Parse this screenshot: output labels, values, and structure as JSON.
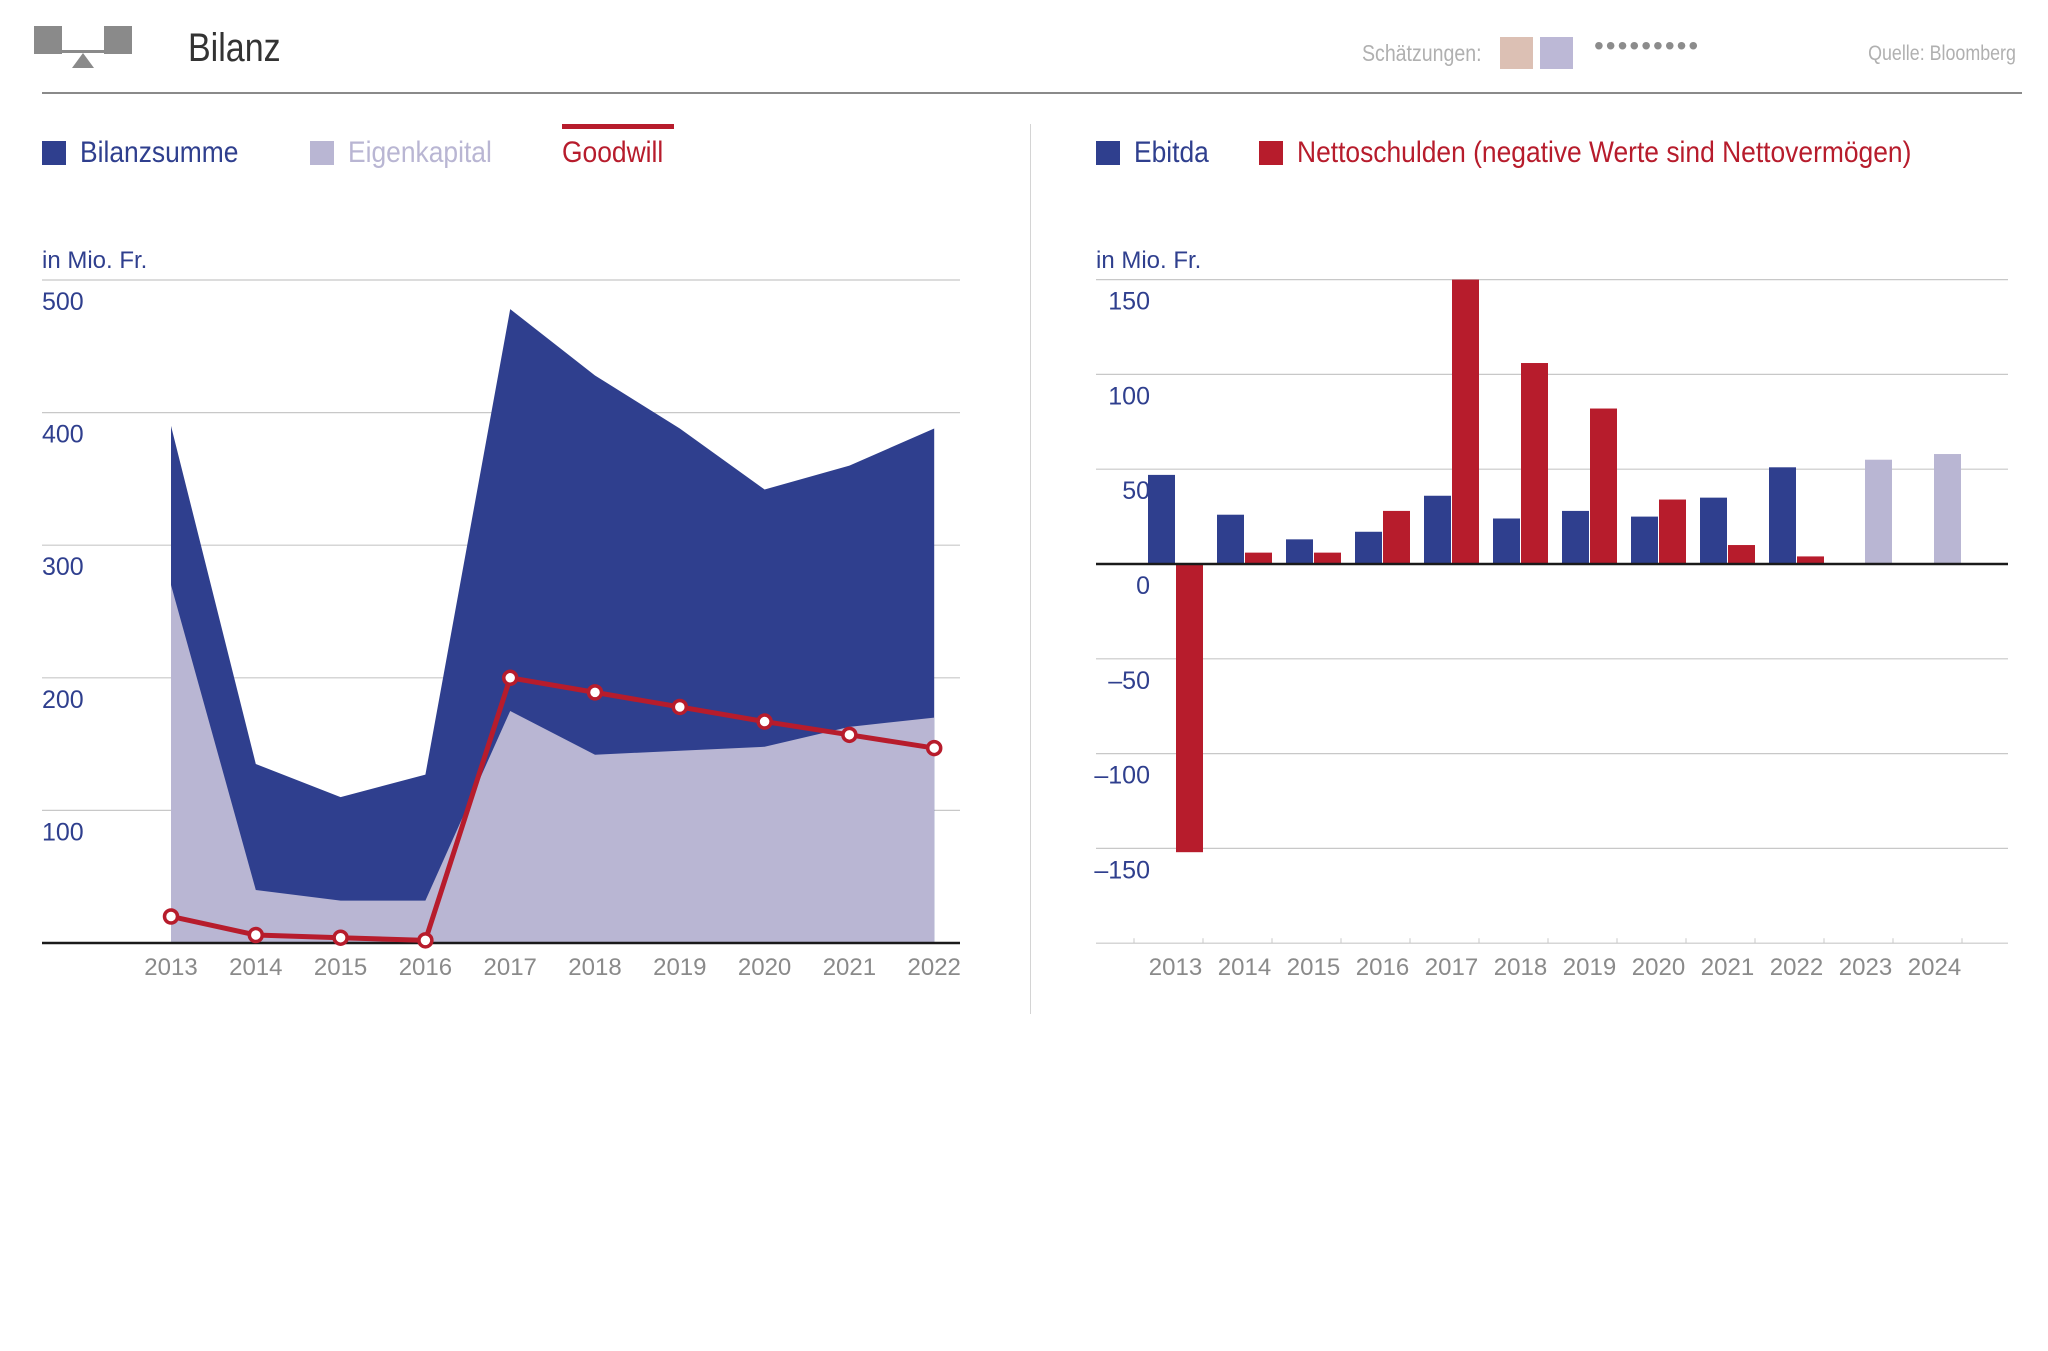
{
  "header": {
    "title": "Bilanz",
    "estimates_label": "Schätzungen:",
    "estimate_swatches": [
      "#dcc0b4",
      "#bcb8d6"
    ],
    "estimate_dots": "•••••••••",
    "source": "Quelle: Bloomberg"
  },
  "colors": {
    "navy": "#2f3f8e",
    "lavender": "#b9b6d3",
    "red": "#b71c2c",
    "text_blue": "#2f3f8e",
    "tick_gray": "#8a8a8a"
  },
  "left_legend": [
    {
      "label": "Bilanzsumme",
      "color": "#2f3f8e"
    },
    {
      "label": "Eigenkapital",
      "color": "#b9b6d3"
    },
    {
      "label": "Goodwill",
      "color": "#b71c2c"
    }
  ],
  "right_legend": [
    {
      "label": "Ebitda",
      "color": "#2f3f8e"
    },
    {
      "label": "Nettoschulden (negative Werte sind Nettovermögen)",
      "color": "#b71c2c"
    }
  ],
  "chart_data": [
    {
      "type": "area",
      "title": "Bilanz",
      "ylabel": "in Mio. Fr.",
      "ylim": [
        0,
        500
      ],
      "yticks": [
        "100",
        "200",
        "300",
        "400",
        "500"
      ],
      "categories": [
        "2013",
        "2014",
        "2015",
        "2016",
        "2017",
        "2018",
        "2019",
        "2020",
        "2021",
        "2022"
      ],
      "series": [
        {
          "name": "Bilanzsumme",
          "kind": "area",
          "values": [
            390,
            135,
            110,
            127,
            478,
            428,
            388,
            342,
            360,
            388
          ]
        },
        {
          "name": "Eigenkapital",
          "kind": "area",
          "values": [
            270,
            40,
            32,
            32,
            175,
            142,
            145,
            148,
            163,
            170
          ]
        },
        {
          "name": "Goodwill",
          "kind": "line",
          "values": [
            20,
            6,
            4,
            2,
            200,
            189,
            178,
            167,
            157,
            147
          ]
        }
      ]
    },
    {
      "type": "bar",
      "ylabel": "in Mio. Fr.",
      "ylim": [
        -200,
        150
      ],
      "yticks": [
        "150",
        "100",
        "50",
        "0",
        "–50",
        "–100",
        "–150"
      ],
      "categories": [
        "2013",
        "2014",
        "2015",
        "2016",
        "2017",
        "2018",
        "2019",
        "2020",
        "2021",
        "2022",
        "2023",
        "2024"
      ],
      "series": [
        {
          "name": "Ebitda",
          "values": [
            47,
            26,
            13,
            17,
            36,
            24,
            28,
            25,
            35,
            51,
            55,
            58
          ],
          "estimate_from_index": 10
        },
        {
          "name": "Nettoschulden",
          "values": [
            -152,
            6,
            6,
            28,
            150,
            106,
            82,
            34,
            10,
            4,
            null,
            null
          ]
        }
      ]
    }
  ]
}
